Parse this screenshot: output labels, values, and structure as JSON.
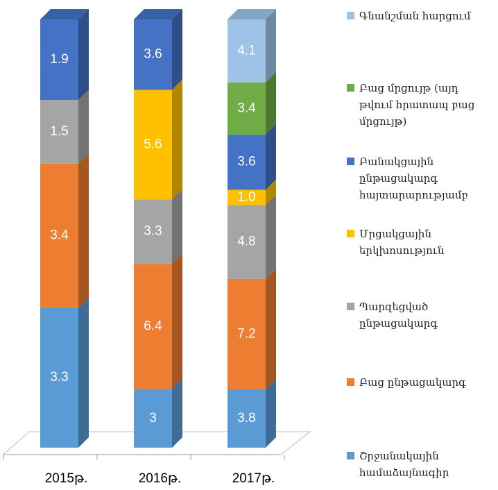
{
  "chart_data": {
    "type": "bar",
    "stacking": "percent",
    "categories": [
      "2015թ.",
      "2016թ.",
      "2017թ."
    ],
    "series": [
      {
        "name": "Շրջանակային համաձայնագիր",
        "color": "#5b9bd5",
        "values": [
          3.3,
          3,
          3.8
        ]
      },
      {
        "name": "Բաց ընթացակարգ",
        "color": "#ed7d31",
        "values": [
          3.4,
          6.4,
          7.2
        ]
      },
      {
        "name": "Պարզեցված ընթացակարգ",
        "color": "#a5a5a5",
        "values": [
          1.5,
          3.3,
          4.8
        ]
      },
      {
        "name": "Մրցակցային երկխոսություն",
        "color": "#ffc000",
        "values": [
          null,
          5.6,
          1
        ],
        "value_labels": [
          null,
          "5.6",
          "1.0"
        ]
      },
      {
        "name": "Բանակցային ընթացակարգ հայտարարությամբ",
        "color": "#4472c4",
        "values": [
          1.9,
          3.6,
          3.6
        ]
      },
      {
        "name": "Բաց մրցույթ (այդ թվում հրատապ բաց մրցույթ)",
        "color": "#70ad47",
        "values": [
          null,
          null,
          3.4
        ]
      },
      {
        "name": "Գնանշման հարցում",
        "color": "#9dc3e6",
        "values": [
          null,
          null,
          4.1
        ]
      }
    ]
  }
}
